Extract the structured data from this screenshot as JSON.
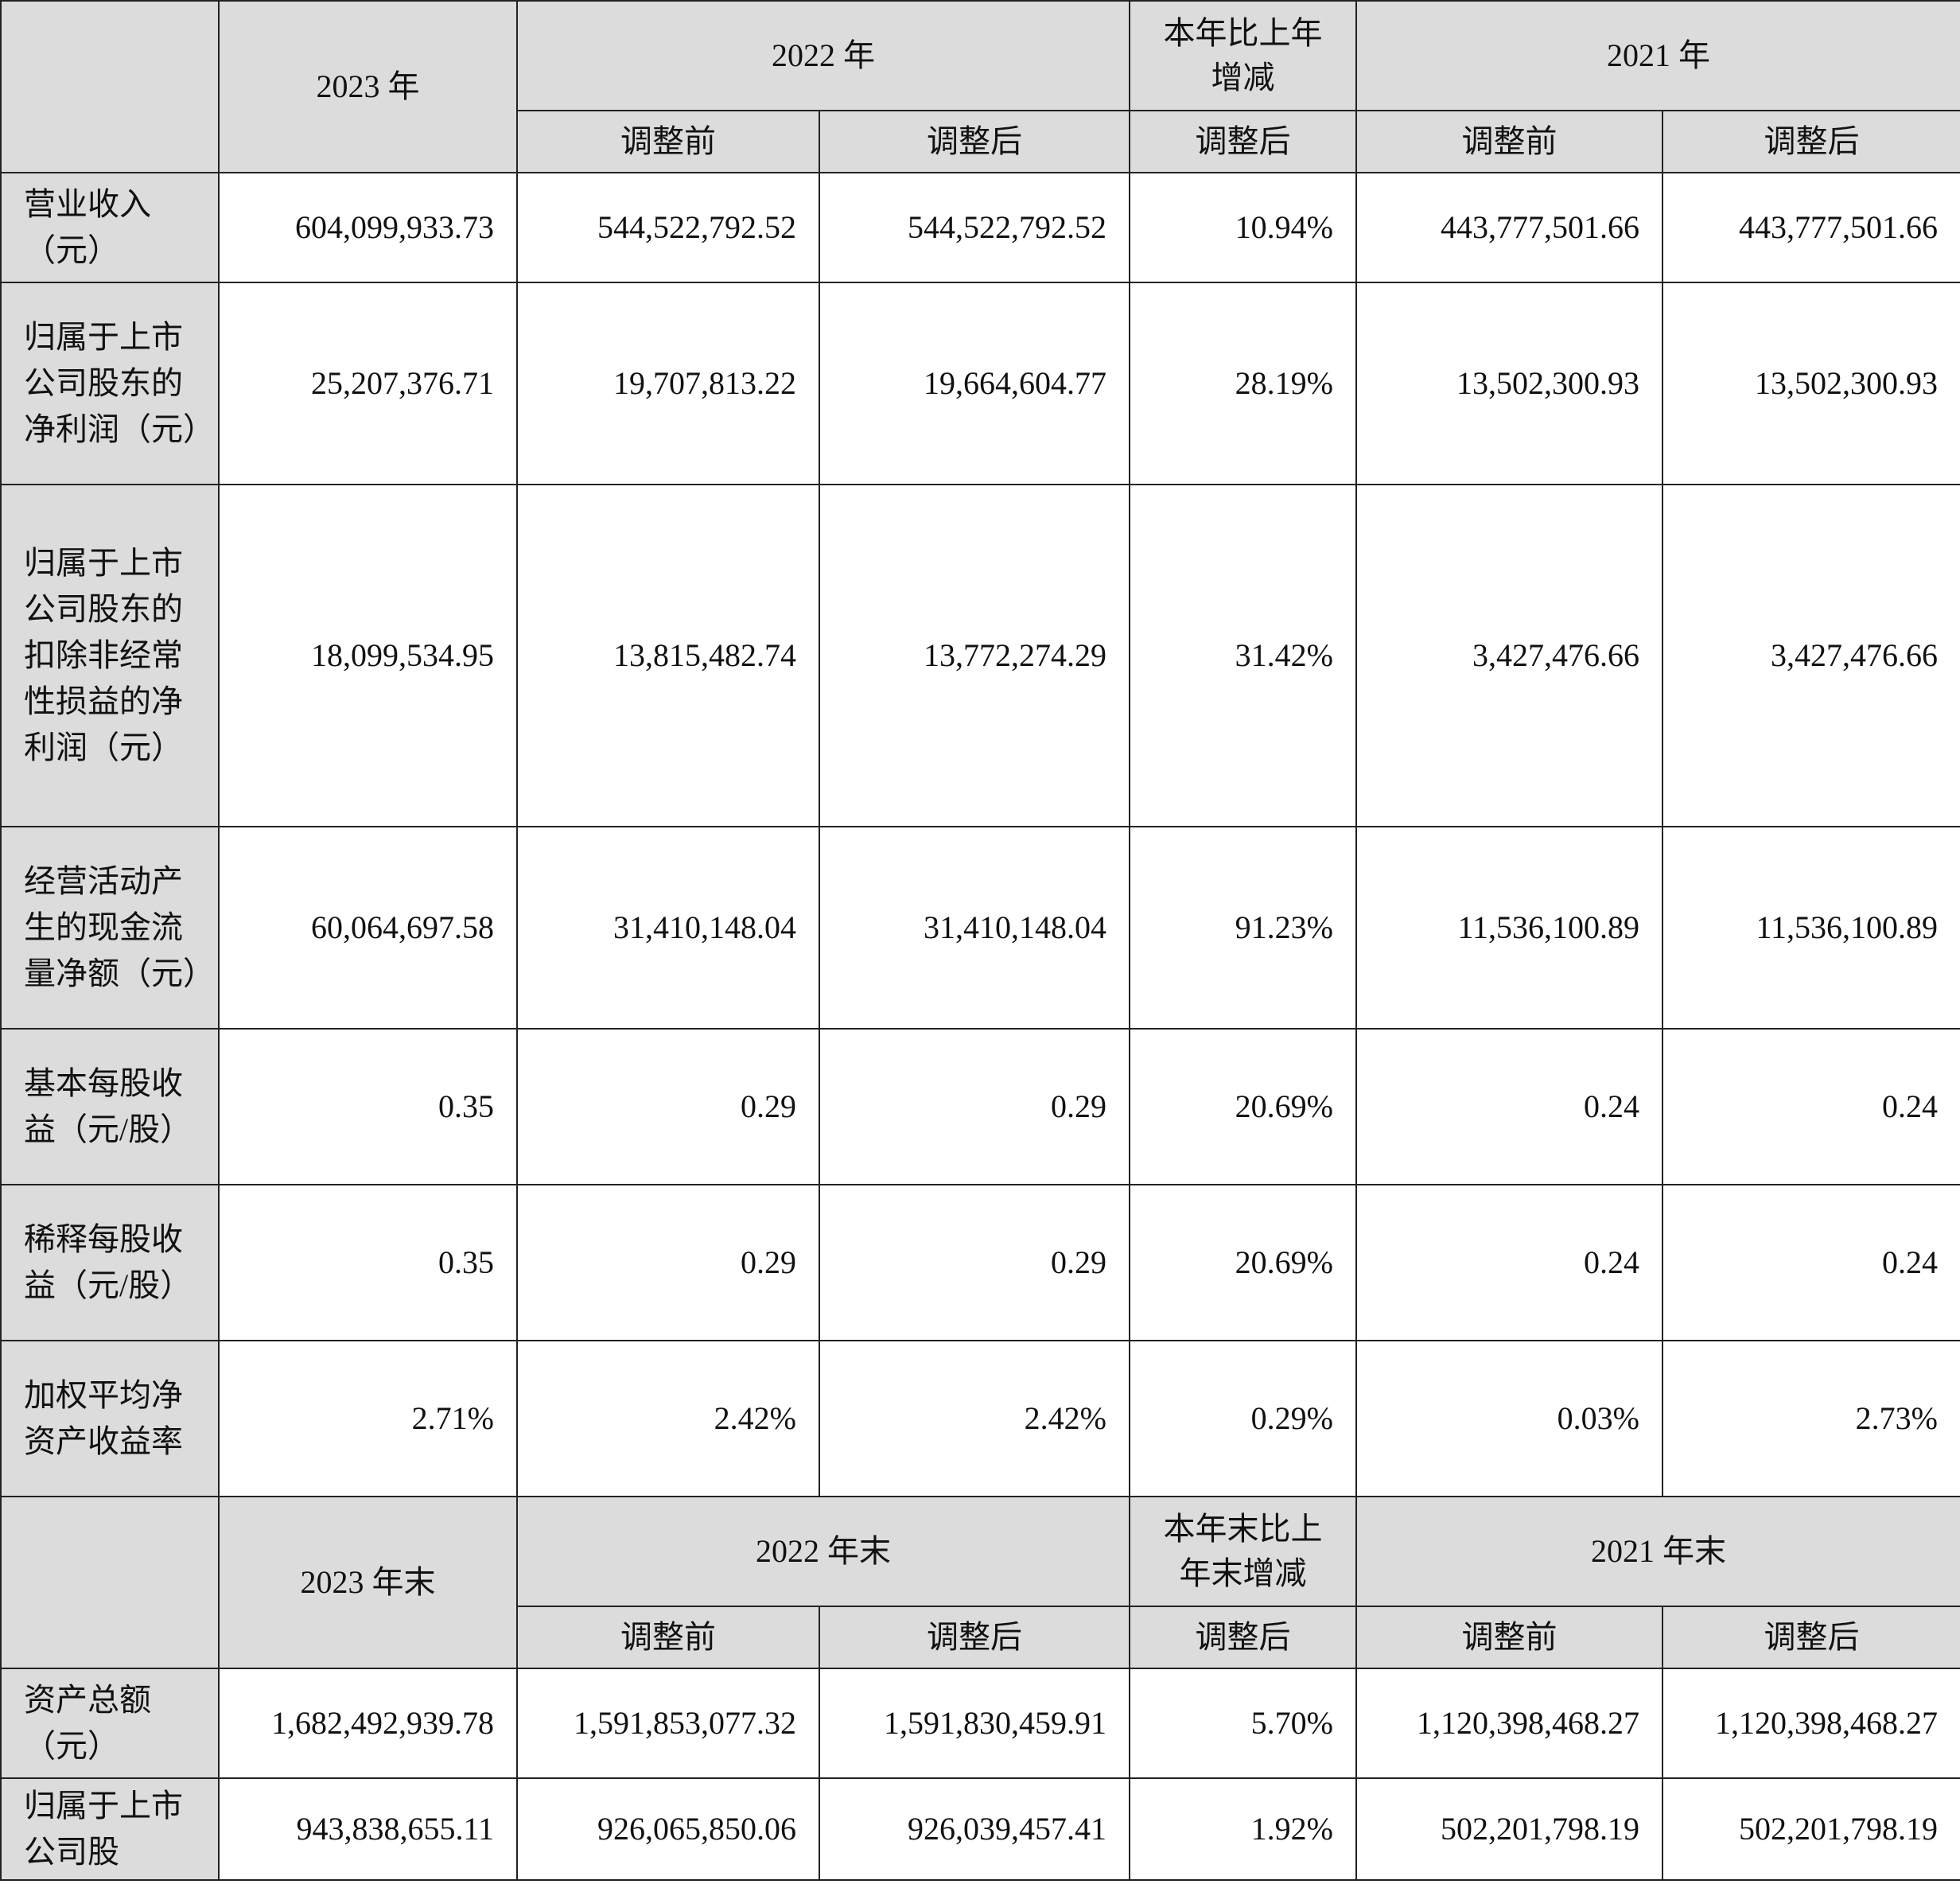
{
  "section1": {
    "header": {
      "year_current": "2023 年",
      "year_prev": "2022 年",
      "change": "本年比上年增减",
      "year_prev2": "2021 年",
      "before_adj": "调整前",
      "after_adj": "调整后",
      "change_after_adj": "调整后"
    },
    "rows": [
      {
        "label": "营业收入（元）",
        "v2023": "604,099,933.73",
        "v2022_before": "544,522,792.52",
        "v2022_after": "544,522,792.52",
        "change": "10.94%",
        "v2021_before": "443,777,501.66",
        "v2021_after": "443,777,501.66"
      },
      {
        "label": "归属于上市公司股东的净利润（元）",
        "v2023": "25,207,376.71",
        "v2022_before": "19,707,813.22",
        "v2022_after": "19,664,604.77",
        "change": "28.19%",
        "v2021_before": "13,502,300.93",
        "v2021_after": "13,502,300.93"
      },
      {
        "label": "归属于上市公司股东的扣除非经常性损益的净利润（元）",
        "v2023": "18,099,534.95",
        "v2022_before": "13,815,482.74",
        "v2022_after": "13,772,274.29",
        "change": "31.42%",
        "v2021_before": "3,427,476.66",
        "v2021_after": "3,427,476.66"
      },
      {
        "label": "经营活动产生的现金流量净额（元）",
        "v2023": "60,064,697.58",
        "v2022_before": "31,410,148.04",
        "v2022_after": "31,410,148.04",
        "change": "91.23%",
        "v2021_before": "11,536,100.89",
        "v2021_after": "11,536,100.89"
      },
      {
        "label": "基本每股收益（元/股）",
        "v2023": "0.35",
        "v2022_before": "0.29",
        "v2022_after": "0.29",
        "change": "20.69%",
        "v2021_before": "0.24",
        "v2021_after": "0.24"
      },
      {
        "label": "稀释每股收益（元/股）",
        "v2023": "0.35",
        "v2022_before": "0.29",
        "v2022_after": "0.29",
        "change": "20.69%",
        "v2021_before": "0.24",
        "v2021_after": "0.24"
      },
      {
        "label": "加权平均净资产收益率",
        "v2023": "2.71%",
        "v2022_before": "2.42%",
        "v2022_after": "2.42%",
        "change": "0.29%",
        "v2021_before": "0.03%",
        "v2021_after": "2.73%"
      }
    ]
  },
  "section2": {
    "header": {
      "year_current": "2023 年末",
      "year_prev": "2022 年末",
      "change": "本年末比上年末增减",
      "year_prev2": "2021 年末",
      "before_adj": "调整前",
      "after_adj": "调整后",
      "change_after_adj": "调整后"
    },
    "rows": [
      {
        "label": "资产总额（元）",
        "v2023": "1,682,492,939.78",
        "v2022_before": "1,591,853,077.32",
        "v2022_after": "1,591,830,459.91",
        "change": "5.70%",
        "v2021_before": "1,120,398,468.27",
        "v2021_after": "1,120,398,468.27"
      },
      {
        "label": "归属于上市公司股",
        "v2023": "943,838,655.11",
        "v2022_before": "926,065,850.06",
        "v2022_after": "926,039,457.41",
        "change": "1.92%",
        "v2021_before": "502,201,798.19",
        "v2021_after": "502,201,798.19"
      }
    ]
  }
}
